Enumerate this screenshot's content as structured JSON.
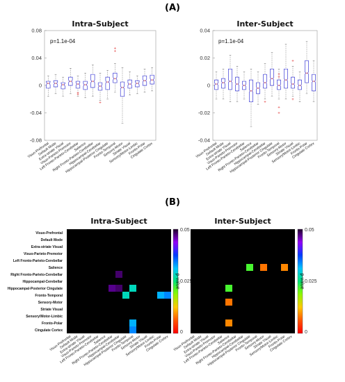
{
  "panel_a_label": "(A)",
  "panel_b_label": "(B)",
  "categories": [
    "Visuo-Prefrontal",
    "Default Mode",
    "Extra-striate Visual",
    "Visuo-Parieto-Premotor",
    "Left Fronto-Parieto-Cerebellar",
    "Salience",
    "Right Fronto-Parieto-Cerebellar",
    "Hippocampal-Cerebellar",
    "Hippocampal-Posterior Cingulate",
    "Fronto-Temporal",
    "Sensory-Motor",
    "Striate Visual",
    "Sensory/Motor-Limbic",
    "Fronto-Polar",
    "Cingulate Cortex"
  ],
  "colorbar": {
    "label": "p-value",
    "ticks": [
      "0.05",
      "0.025",
      "0"
    ]
  },
  "chart_data": [
    {
      "type": "box",
      "title": "Intra-Subject",
      "annotation": "p=1.1e-04",
      "ylim": [
        -0.08,
        0.08
      ],
      "yticks": [
        "0.08",
        "0.04",
        "0",
        "-0.04",
        "-0.08"
      ],
      "boxes": [
        {
          "q1": -0.004,
          "median": 0.003,
          "q3": 0.006,
          "whisker_low": -0.016,
          "whisker_high": 0.014,
          "outliers": []
        },
        {
          "q1": -0.002,
          "median": 0.003,
          "q3": 0.007,
          "whisker_low": -0.012,
          "whisker_high": 0.016,
          "outliers": []
        },
        {
          "q1": -0.005,
          "median": 0.001,
          "q3": 0.004,
          "whisker_low": -0.016,
          "whisker_high": 0.012,
          "outliers": []
        },
        {
          "q1": 0.0,
          "median": 0.006,
          "q3": 0.012,
          "whisker_low": -0.012,
          "whisker_high": 0.025,
          "outliers": []
        },
        {
          "q1": -0.004,
          "median": 0.002,
          "q3": 0.006,
          "whisker_low": -0.016,
          "whisker_high": 0.014,
          "outliers": [
            -0.011,
            -0.013
          ]
        },
        {
          "q1": -0.006,
          "median": 0.001,
          "q3": 0.006,
          "whisker_low": -0.018,
          "whisker_high": 0.018,
          "outliers": []
        },
        {
          "q1": -0.003,
          "median": 0.006,
          "q3": 0.016,
          "whisker_low": -0.016,
          "whisker_high": 0.03,
          "outliers": []
        },
        {
          "q1": -0.007,
          "median": -0.001,
          "q3": 0.004,
          "whisker_low": -0.022,
          "whisker_high": 0.018,
          "outliers": [
            -0.025
          ]
        },
        {
          "q1": -0.006,
          "median": 0.005,
          "q3": 0.012,
          "whisker_low": -0.02,
          "whisker_high": 0.022,
          "outliers": []
        },
        {
          "q1": 0.004,
          "median": 0.01,
          "q3": 0.018,
          "whisker_low": -0.01,
          "whisker_high": 0.032,
          "outliers": [
            0.05,
            0.054
          ]
        },
        {
          "q1": -0.016,
          "median": -0.003,
          "q3": 0.005,
          "whisker_low": -0.055,
          "whisker_high": 0.026,
          "outliers": []
        },
        {
          "q1": -0.004,
          "median": 0.002,
          "q3": 0.008,
          "whisker_low": -0.014,
          "whisker_high": 0.02,
          "outliers": []
        },
        {
          "q1": -0.002,
          "median": 0.003,
          "q3": 0.007,
          "whisker_low": -0.012,
          "whisker_high": 0.014,
          "outliers": []
        },
        {
          "q1": 0.0,
          "median": 0.007,
          "q3": 0.014,
          "whisker_low": -0.01,
          "whisker_high": 0.024,
          "outliers": []
        },
        {
          "q1": 0.002,
          "median": 0.008,
          "q3": 0.015,
          "whisker_low": -0.008,
          "whisker_high": 0.026,
          "outliers": []
        }
      ]
    },
    {
      "type": "box",
      "title": "Inter-Subject",
      "annotation": "p=1.1e-04",
      "ylim": [
        -0.04,
        0.04
      ],
      "yticks": [
        "0.04",
        "0.02",
        "0",
        "-0.02",
        "-0.04"
      ],
      "boxes": [
        {
          "q1": -0.003,
          "median": 0.001,
          "q3": 0.004,
          "whisker_low": -0.01,
          "whisker_high": 0.01,
          "outliers": []
        },
        {
          "q1": -0.002,
          "median": 0.002,
          "q3": 0.005,
          "whisker_low": -0.01,
          "whisker_high": 0.012,
          "outliers": []
        },
        {
          "q1": -0.003,
          "median": 0.003,
          "q3": 0.012,
          "whisker_low": -0.012,
          "whisker_high": 0.022,
          "outliers": []
        },
        {
          "q1": -0.004,
          "median": 0.001,
          "q3": 0.006,
          "whisker_low": -0.012,
          "whisker_high": 0.014,
          "outliers": []
        },
        {
          "q1": -0.003,
          "median": 0.0,
          "q3": 0.003,
          "whisker_low": -0.01,
          "whisker_high": 0.01,
          "outliers": []
        },
        {
          "q1": -0.012,
          "median": -0.004,
          "q3": 0.004,
          "whisker_low": -0.03,
          "whisker_high": 0.012,
          "outliers": []
        },
        {
          "q1": -0.006,
          "median": -0.002,
          "q3": 0.002,
          "whisker_low": -0.014,
          "whisker_high": 0.01,
          "outliers": []
        },
        {
          "q1": -0.002,
          "median": 0.002,
          "q3": 0.008,
          "whisker_low": -0.01,
          "whisker_high": 0.016,
          "outliers": [
            -0.012
          ]
        },
        {
          "q1": 0.0,
          "median": 0.005,
          "q3": 0.012,
          "whisker_low": -0.008,
          "whisker_high": 0.024,
          "outliers": []
        },
        {
          "q1": -0.003,
          "median": 0.0,
          "q3": 0.004,
          "whisker_low": -0.01,
          "whisker_high": 0.012,
          "outliers": [
            0.006,
            0.008,
            -0.016,
            -0.02
          ]
        },
        {
          "q1": -0.002,
          "median": 0.004,
          "q3": 0.012,
          "whisker_low": -0.01,
          "whisker_high": 0.03,
          "outliers": []
        },
        {
          "q1": -0.002,
          "median": 0.001,
          "q3": 0.006,
          "whisker_low": -0.008,
          "whisker_high": 0.014,
          "outliers": [
            0.018,
            -0.01
          ]
        },
        {
          "q1": -0.003,
          "median": 0.0,
          "q3": 0.004,
          "whisker_low": -0.012,
          "whisker_high": 0.01,
          "outliers": []
        },
        {
          "q1": 0.002,
          "median": 0.009,
          "q3": 0.018,
          "whisker_low": -0.006,
          "whisker_high": 0.032,
          "outliers": []
        },
        {
          "q1": -0.004,
          "median": 0.003,
          "q3": 0.008,
          "whisker_low": -0.012,
          "whisker_high": 0.018,
          "outliers": []
        }
      ]
    },
    {
      "type": "heatmap",
      "title": "Intra-Subject",
      "value_range": [
        0,
        0.05
      ],
      "cells": [
        {
          "row": 6,
          "col": 7,
          "p": 0.048
        },
        {
          "row": 8,
          "col": 6,
          "p": 0.047
        },
        {
          "row": 8,
          "col": 7,
          "p": 0.048
        },
        {
          "row": 8,
          "col": 9,
          "p": 0.028
        },
        {
          "row": 9,
          "col": 8,
          "p": 0.028
        },
        {
          "row": 9,
          "col": 13,
          "p": 0.032
        },
        {
          "row": 9,
          "col": 14,
          "p": 0.034
        },
        {
          "row": 13,
          "col": 9,
          "p": 0.032
        },
        {
          "row": 14,
          "col": 9,
          "p": 0.034
        }
      ]
    },
    {
      "type": "heatmap",
      "title": "Inter-Subject",
      "value_range": [
        0,
        0.05
      ],
      "cells": [
        {
          "row": 5,
          "col": 8,
          "p": 0.022
        },
        {
          "row": 5,
          "col": 10,
          "p": 0.008
        },
        {
          "row": 5,
          "col": 13,
          "p": 0.009
        },
        {
          "row": 8,
          "col": 5,
          "p": 0.022
        },
        {
          "row": 10,
          "col": 5,
          "p": 0.008
        },
        {
          "row": 13,
          "col": 5,
          "p": 0.009
        }
      ]
    }
  ]
}
